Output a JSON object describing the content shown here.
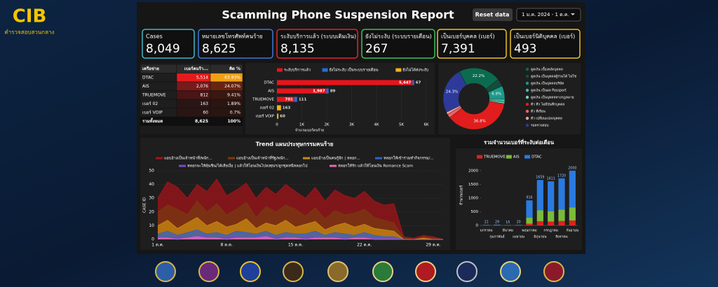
{
  "header": {
    "logo": "CIB",
    "logo_subtitle": "ตำรวจสอบสวนกลาง",
    "title": "Scamming Phone Suspension Report",
    "reset_button": "Reset data",
    "date_range": "1 ม.ค. 2024 - 1 ต.ค."
  },
  "kpis": [
    {
      "label": "Cases",
      "value": "8,049",
      "color": "#3fb6c8"
    },
    {
      "label": "หมายเลขโทรศัพท์คนร้าย",
      "value": "8,625",
      "color": "#3a78d8"
    },
    {
      "label": "ระงับบริการแล้ว (ระบบเติมเงิน)",
      "value": "8,135",
      "color": "#e0262b"
    },
    {
      "label": "ยังไม่ระงับ (ระบบรายเดือน)",
      "value": "267",
      "color": "#3fbf5a"
    },
    {
      "label": "เป็นเบอร์บุคคล (เบอร์)",
      "value": "7,391",
      "color": "#e8c22a"
    },
    {
      "label": "เป็นเบอร์นิติบุคคล (เบอร์)",
      "value": "493",
      "color": "#e8c22a"
    }
  ],
  "table": {
    "columns": [
      "เครือข่าย",
      "เบอร์คนร้า...",
      "คิด %"
    ],
    "rows": [
      [
        "DTAC",
        "5,514",
        "63.93%"
      ],
      [
        "AIS",
        "2,076",
        "24.07%"
      ],
      [
        "TRUEMOVE",
        "812",
        "9.41%"
      ],
      [
        "เบอร์ 02",
        "163",
        "1.89%"
      ],
      [
        "เบอร์ VOIP",
        "60",
        "0.7%"
      ]
    ],
    "total": [
      "รวมทั้งหมด",
      "8,625",
      "100%"
    ]
  },
  "chart_data": [
    {
      "type": "hbar",
      "stacked": true,
      "categories": [
        "DTAC",
        "AIS",
        "TRUEMOVE",
        "เบอร์ 02",
        "เบอร์ VOIP"
      ],
      "series": [
        {
          "name": "ระงับบริการแล้ว",
          "color": "#e8141b",
          "values": [
            5447,
            1987,
            701,
            null,
            null
          ],
          "value_labels": [
            "5,447",
            "1,987",
            "701",
            null,
            null
          ]
        },
        {
          "name": "ยังไม่ระงับ เป็นระบบรายเดือน",
          "color": "#2a6bd6",
          "values": [
            67,
            89,
            111,
            null,
            null
          ]
        },
        {
          "name": "ยังไม่ได้ส่งระงับ",
          "color": "#f2b31b",
          "values": [
            null,
            null,
            null,
            163,
            60
          ]
        }
      ],
      "xlim": [
        0,
        6000
      ],
      "xticks": [
        0,
        {
          "value": 1000,
          "label": "1K"
        },
        {
          "value": 2000,
          "label": "2K"
        },
        {
          "value": 3000,
          "label": "3K"
        },
        {
          "value": 4000,
          "label": "4K"
        },
        {
          "value": 5000,
          "label": "5K"
        },
        {
          "value": 6000,
          "label": "6K"
        }
      ],
      "xlabel": "จำนวนเบอร์คนร้าย",
      "grid": true
    },
    {
      "type": "pie",
      "donut": true,
      "categories": [
        "ดูดเงิน เบื้องหลังบุคคล",
        "ดูดเงิน เป็นบุคคลผู้ร่วมได้ ไม่ใช่",
        "ดูดเงิน เป็นบุคคลบริษัท",
        "ดูดเงิน เป็นผล Passport",
        "ดูดเงิน เป็นบุคคลทางกฎหมาย",
        "ดีว ทีว ไม่มีบันทึกบุคคล",
        "ดีว ที่เรียน",
        "ดีว เปลี่ยนแปลงบุคคล",
        "รอตรวจสอบ"
      ],
      "values": [
        22.2,
        4.0,
        6.9,
        1.5,
        1.0,
        36.8,
        2.0,
        1.3,
        24.3
      ],
      "value_labels": [
        "22.2%",
        null,
        "6.9%",
        null,
        null,
        "36.8%",
        null,
        null,
        "24.3%"
      ],
      "colors": [
        "#0b6b4f",
        "#124d3c",
        "#1a9a8a",
        "#3fbfa8",
        "#78d0b8",
        "#e11d1d",
        "#f06262",
        "#f4a0a0",
        "#2d3a9a"
      ]
    },
    {
      "type": "area",
      "title": "Trend แผนประทุษกรรมคนร้าย",
      "categories": [
        "1 ต.ค.",
        null,
        null,
        null,
        null,
        null,
        null,
        "8 ต.ค.",
        null,
        null,
        null,
        null,
        null,
        null,
        "15 ต.ค.",
        null,
        null,
        null,
        null,
        null,
        null,
        "22 ต.ค.",
        null,
        null,
        null,
        null,
        null,
        null,
        "29 ต.ค.",
        null
      ],
      "series": [
        {
          "name": "แอบอ้างเป็นเจ้าหน้าที่/พนัก...",
          "color": "#a3141a",
          "values": [
            30,
            42,
            38,
            30,
            40,
            35,
            44,
            32,
            36,
            41,
            30,
            38,
            33,
            40,
            35,
            30,
            38,
            28,
            36,
            32,
            30,
            35,
            28,
            25,
            26,
            2,
            1,
            3,
            2,
            0
          ]
        },
        {
          "name": "แอบอ้างเป็นเจ้าหน้าที่รัฐ/พนัก...",
          "color": "#7a3a12",
          "values": [
            20,
            25,
            22,
            18,
            28,
            20,
            26,
            18,
            22,
            27,
            16,
            24,
            20,
            25,
            22,
            17,
            23,
            15,
            21,
            18,
            19,
            22,
            16,
            14,
            12,
            1,
            0,
            2,
            1,
            0
          ]
        },
        {
          "name": "แอบอ้างเป็นคนรู้จัก | หลอก...",
          "color": "#c98a12",
          "values": [
            10,
            14,
            8,
            12,
            16,
            10,
            13,
            9,
            11,
            15,
            8,
            12,
            10,
            14,
            9,
            11,
            13,
            7,
            10,
            12,
            9,
            11,
            8,
            7,
            6,
            0,
            0,
            1,
            0,
            0
          ]
        },
        {
          "name": "หลอกให้เข้าร่วมทำกิจกรรม/...",
          "color": "#2f62c8",
          "values": [
            4,
            6,
            3,
            5,
            7,
            4,
            5,
            3,
            6,
            5,
            4,
            6,
            3,
            5,
            4,
            4,
            6,
            3,
            5,
            4,
            3,
            5,
            3,
            2,
            2,
            0,
            0,
            0,
            0,
            0
          ]
        },
        {
          "name": "หลอกจะให้คุ้นชิน/ได้เสียเงื่อ | แล้วให้โอนเงินไปลงทุนฯ/ลูกชุดหนีหลอกไป",
          "color": "#7a4ac8",
          "values": [
            2,
            1,
            2,
            1,
            3,
            2,
            1,
            2,
            2,
            1,
            2,
            3,
            1,
            2,
            1,
            2,
            2,
            1,
            2,
            1,
            1,
            2,
            1,
            1,
            1,
            0,
            0,
            0,
            0,
            0
          ]
        },
        {
          "name": "หลอกให้รัก แล้วให้โอนเงิน Romance Scam",
          "color": "#e86aa8",
          "values": [
            1,
            1,
            0,
            1,
            2,
            1,
            1,
            0,
            1,
            1,
            1,
            2,
            0,
            1,
            1,
            0,
            1,
            1,
            1,
            0,
            1,
            1,
            0,
            0,
            0,
            0,
            0,
            0,
            0,
            0
          ]
        }
      ],
      "ylim": [
        0,
        50
      ],
      "yticks": [
        0,
        10,
        20,
        30,
        40,
        50
      ],
      "ylabel": "CASE ID",
      "grid": true
    },
    {
      "type": "stacked_bar",
      "title": "รวมจำนวนเบอร์ที่ระงับต่อเดือน",
      "categories": [
        "มกราคม",
        "กุมภาพันธ์",
        "มีนาคม",
        "เมษายน",
        "พฤษภาคม",
        "มิถุนายน",
        "กรกฎาคม",
        "สิงหาคม",
        "กันยายน"
      ],
      "series": [
        {
          "name": "TRUEMOVE",
          "color": "#e0201f",
          "values": [
            2,
            3,
            1,
            2,
            60,
            150,
            140,
            160,
            180
          ]
        },
        {
          "name": "AIS",
          "color": "#7cba3a",
          "values": [
            5,
            8,
            4,
            5,
            220,
            400,
            380,
            420,
            480
          ]
        },
        {
          "name": "DTAC",
          "color": "#2a7ae0",
          "values": [
            14,
            18,
            10,
            13,
            636,
            1109,
            1091,
            1140,
            1340
          ]
        }
      ],
      "totals": [
        21,
        29,
        15,
        20,
        916,
        1659,
        1611,
        1720,
        2000
      ],
      "ylim": [
        0,
        2200
      ],
      "yticks": [
        0,
        500,
        1000,
        1500,
        2000
      ],
      "ylabel": "จำนวนเบอร์",
      "legend": "top"
    }
  ]
}
